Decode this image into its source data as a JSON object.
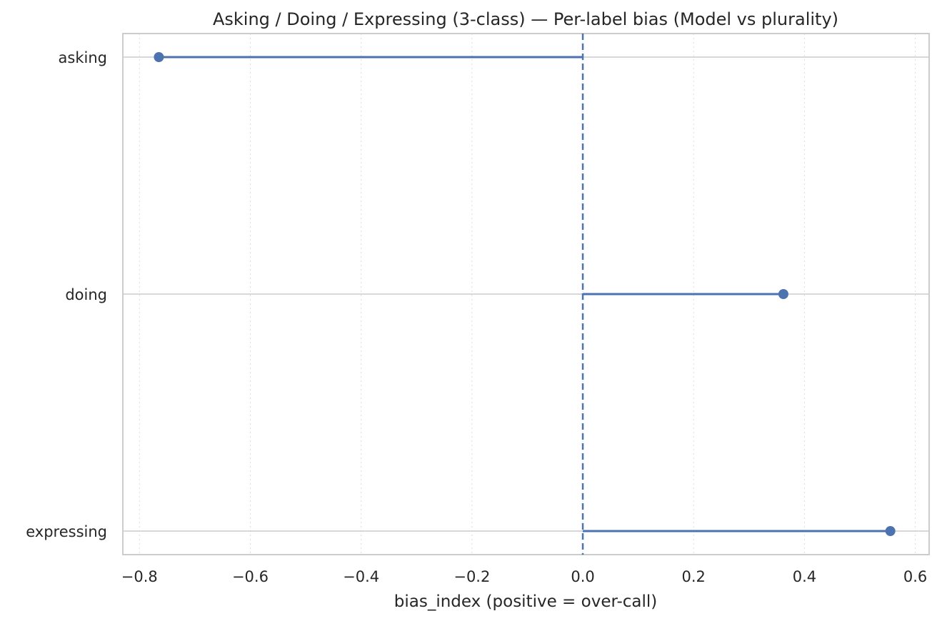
{
  "chart_data": {
    "type": "lollipop",
    "title": "Asking / Doing / Expressing (3-class) — Per-label bias (Model vs plurality)",
    "xlabel": "bias_index  (positive = over-call)",
    "ylabel": "",
    "categories": [
      "asking",
      "doing",
      "expressing"
    ],
    "values": [
      -0.765,
      0.362,
      0.555
    ],
    "xlim": [
      -0.83,
      0.625
    ],
    "xticks": [
      -0.8,
      -0.6,
      -0.4,
      -0.2,
      0.0,
      0.2,
      0.4,
      0.6
    ],
    "xtick_labels": [
      "−0.8",
      "−0.6",
      "−0.4",
      "−0.2",
      "0.0",
      "0.2",
      "0.4",
      "0.6"
    ],
    "reference_line": 0.0,
    "grid": {
      "x": "dotted",
      "y": "solid"
    },
    "colors": {
      "series": "#4c72b0",
      "grid": "#cccccc",
      "axes": "#cccccc",
      "text": "#262626"
    }
  }
}
